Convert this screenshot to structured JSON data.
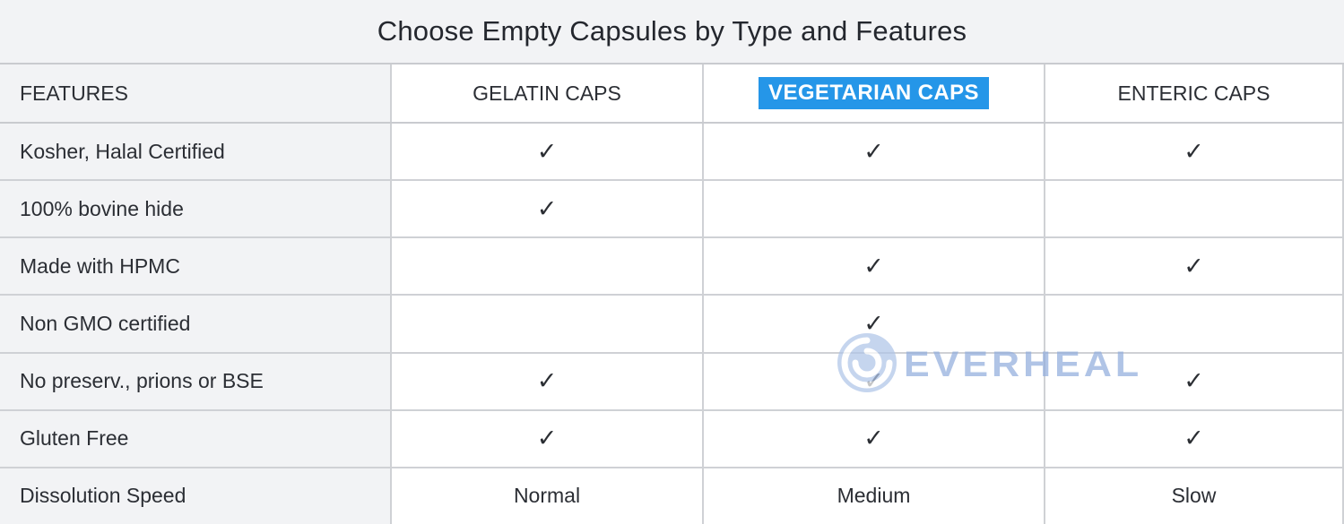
{
  "title": "Choose Empty Capsules by Type and Features",
  "table": {
    "check_glyph": "✓",
    "columns": [
      {
        "label": "FEATURES",
        "highlight": false
      },
      {
        "label": "GELATIN CAPS",
        "highlight": false
      },
      {
        "label": "VEGETARIAN CAPS",
        "highlight": true
      },
      {
        "label": "ENTERIC CAPS",
        "highlight": false
      }
    ],
    "column_keys": [
      "gelatin",
      "vegetarian",
      "enteric"
    ],
    "rows": [
      {
        "feature": "Kosher, Halal Certified",
        "values": [
          "✓",
          "✓",
          "✓"
        ]
      },
      {
        "feature": "100% bovine hide",
        "values": [
          "✓",
          "",
          ""
        ]
      },
      {
        "feature": "Made with HPMC",
        "values": [
          "",
          "✓",
          "✓"
        ]
      },
      {
        "feature": "Non GMO certified",
        "values": [
          "",
          "✓",
          ""
        ]
      },
      {
        "feature": "No preserv., prions or BSE",
        "values": [
          "✓",
          "✓",
          "✓"
        ]
      },
      {
        "feature": "Gluten Free",
        "values": [
          "✓",
          "✓",
          "✓"
        ]
      },
      {
        "feature": "Dissolution Speed",
        "values": [
          "Normal",
          "Medium",
          "Slow"
        ]
      }
    ]
  },
  "watermark": {
    "brand": "EVERHEAL",
    "logo": "spiral-logo"
  },
  "colors": {
    "highlight_blue": "#2596e8",
    "highlight_text": "#ffffff",
    "row_gray": "#f2f3f5",
    "border_gray": "#cfd1d5",
    "text_dark": "#2b2e34",
    "watermark_blue": "#93aedd"
  }
}
